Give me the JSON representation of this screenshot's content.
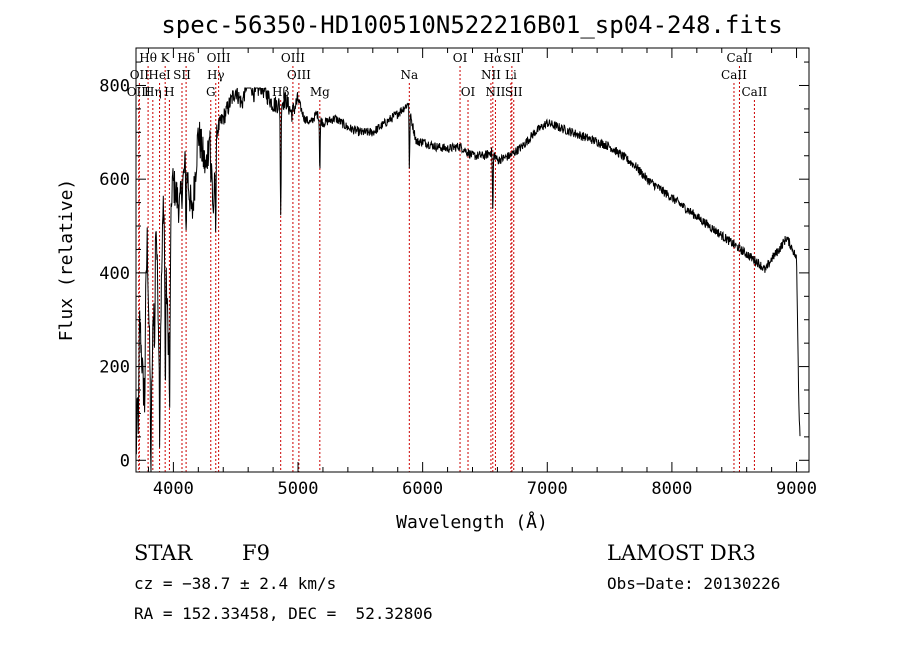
{
  "chart_data": {
    "type": "line",
    "title": "spec-56350-HD100510N522216B01_sp04-248.fits",
    "xlabel": "Wavelength (Å)",
    "ylabel": "Flux (relative)",
    "xlim": [
      3700,
      9100
    ],
    "ylim": [
      -25,
      880
    ],
    "x_ticks": [
      4000,
      5000,
      6000,
      7000,
      8000,
      9000
    ],
    "y_ticks": [
      0,
      200,
      400,
      600,
      800
    ],
    "grid": false,
    "line_color": "#000000",
    "marker_color": "#cc0000",
    "series": [
      {
        "name": "flux",
        "anchors": [
          [
            3700,
            0
          ],
          [
            3730,
            300
          ],
          [
            3760,
            150
          ],
          [
            3790,
            470
          ],
          [
            3820,
            100
          ],
          [
            3860,
            520
          ],
          [
            3890,
            200
          ],
          [
            3920,
            560
          ],
          [
            3960,
            250
          ],
          [
            3990,
            600
          ],
          [
            4050,
            540
          ],
          [
            4100,
            640
          ],
          [
            4150,
            520
          ],
          [
            4200,
            700
          ],
          [
            4260,
            620
          ],
          [
            4300,
            720
          ],
          [
            4320,
            500
          ],
          [
            4340,
            700
          ],
          [
            4400,
            730
          ],
          [
            4450,
            760
          ],
          [
            4500,
            790
          ],
          [
            4550,
            760
          ],
          [
            4600,
            820
          ],
          [
            4650,
            780
          ],
          [
            4700,
            800
          ],
          [
            4750,
            780
          ],
          [
            4800,
            760
          ],
          [
            4850,
            760
          ],
          [
            4900,
            770
          ],
          [
            4950,
            740
          ],
          [
            5000,
            770
          ],
          [
            5050,
            730
          ],
          [
            5100,
            720
          ],
          [
            5150,
            740
          ],
          [
            5200,
            720
          ],
          [
            5300,
            730
          ],
          [
            5400,
            710
          ],
          [
            5500,
            700
          ],
          [
            5600,
            700
          ],
          [
            5700,
            720
          ],
          [
            5800,
            740
          ],
          [
            5880,
            760
          ],
          [
            5950,
            680
          ],
          [
            6000,
            680
          ],
          [
            6100,
            670
          ],
          [
            6200,
            665
          ],
          [
            6300,
            670
          ],
          [
            6400,
            650
          ],
          [
            6500,
            650
          ],
          [
            6560,
            660
          ],
          [
            6600,
            640
          ],
          [
            6700,
            650
          ],
          [
            6800,
            670
          ],
          [
            6900,
            700
          ],
          [
            7000,
            720
          ],
          [
            7100,
            710
          ],
          [
            7200,
            700
          ],
          [
            7300,
            690
          ],
          [
            7400,
            680
          ],
          [
            7500,
            670
          ],
          [
            7600,
            650
          ],
          [
            7700,
            630
          ],
          [
            7800,
            600
          ],
          [
            7900,
            580
          ],
          [
            8000,
            560
          ],
          [
            8100,
            540
          ],
          [
            8200,
            520
          ],
          [
            8300,
            500
          ],
          [
            8400,
            480
          ],
          [
            8500,
            460
          ],
          [
            8600,
            440
          ],
          [
            8700,
            420
          ],
          [
            8750,
            405
          ],
          [
            8800,
            430
          ],
          [
            8860,
            450
          ],
          [
            8920,
            475
          ],
          [
            8970,
            450
          ],
          [
            9000,
            430
          ],
          [
            9020,
            100
          ],
          [
            9030,
            50
          ]
        ],
        "features": [
          [
            3720,
            -120
          ],
          [
            3770,
            -140
          ],
          [
            3820,
            -160
          ],
          [
            3850,
            -180
          ],
          [
            3890,
            -150
          ],
          [
            3935,
            -300
          ],
          [
            3970,
            -280
          ],
          [
            4102,
            -150
          ],
          [
            4300,
            -130
          ],
          [
            4340,
            -210
          ],
          [
            4861,
            -250
          ],
          [
            5175,
            -110
          ],
          [
            5890,
            60
          ],
          [
            5893,
            -160
          ],
          [
            6563,
            -130
          ]
        ],
        "noise": 28
      }
    ],
    "line_markers": {
      "row1": [
        {
          "label": "Hθ",
          "x": 3797
        },
        {
          "label": "K",
          "x": 3934
        },
        {
          "label": "Hδ",
          "x": 4102
        },
        {
          "label": "OIII",
          "x": 4363
        },
        {
          "label": "OIII",
          "x": 4959
        },
        {
          "label": "OI",
          "x": 6300
        },
        {
          "label": "Hα",
          "x": 6563
        },
        {
          "label": "SII",
          "x": 6716
        },
        {
          "label": "CaII",
          "x": 8542
        }
      ],
      "row2": [
        {
          "label": "OII",
          "x": 3727
        },
        {
          "label": "HeI",
          "x": 3889
        },
        {
          "label": "SII",
          "x": 4069
        },
        {
          "label": "Hγ",
          "x": 4340
        },
        {
          "label": "OIII",
          "x": 5007
        },
        {
          "label": "Na",
          "x": 5893
        },
        {
          "label": "NII",
          "x": 6548
        },
        {
          "label": "Li",
          "x": 6708
        },
        {
          "label": "CaII",
          "x": 8498
        }
      ],
      "row3": [
        {
          "label": "OIII",
          "x": 3722
        },
        {
          "label": "Hη",
          "x": 3835
        },
        {
          "label": "H",
          "x": 3968
        },
        {
          "label": "G",
          "x": 4300
        },
        {
          "label": "Hβ",
          "x": 4861
        },
        {
          "label": "Mg",
          "x": 5175
        },
        {
          "label": "OI",
          "x": 6364
        },
        {
          "label": "NII",
          "x": 6584
        },
        {
          "label": "SII",
          "x": 6731
        },
        {
          "label": "CaII",
          "x": 8662
        }
      ]
    }
  },
  "info": {
    "class_label": "STAR",
    "subclass": "F9",
    "survey": "LAMOST DR3",
    "velocity": "cz = −38.7 ± 2.4 km/s",
    "obs_date": "Obs−Date: 20130226",
    "coords": "RA = 152.33458, DEC =  52.32806"
  }
}
